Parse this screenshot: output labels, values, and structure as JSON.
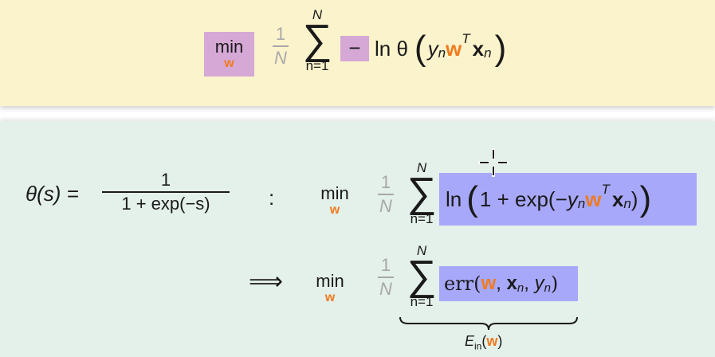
{
  "top": {
    "min": "min",
    "min_sub": "w",
    "frac_num": "1",
    "frac_den": "N",
    "sum_top": "N",
    "sum_sym": "∑",
    "sum_bottom": "n=1",
    "neg": "−",
    "ln_theta": "ln θ",
    "y": "y",
    "y_sub": "n",
    "w": "w",
    "T": "T",
    "x": "x",
    "x_sub": "n"
  },
  "bottom": {
    "theta_lhs": "θ(s) =",
    "theta_num": "1",
    "theta_den": "1 + exp(−s)",
    "colon": ":",
    "row1": {
      "min": "min",
      "min_sub": "w",
      "frac_num": "1",
      "frac_den": "N",
      "sum_top": "N",
      "sum_sym": "∑",
      "sum_bottom": "n=1",
      "ln": "ln",
      "one_plus_exp": "1 + exp(−",
      "y": "y",
      "y_sub": "n",
      "w": "w",
      "T": "T",
      "x": "x",
      "x_sub": "n",
      "close": ")"
    },
    "row2": {
      "implies": "⟹",
      "min": "min",
      "min_sub": "w",
      "frac_num": "1",
      "frac_den": "N",
      "sum_top": "N",
      "sum_sym": "∑",
      "sum_bottom": "n=1",
      "err": "err(",
      "w": "w",
      "comma1": ", ",
      "x": "x",
      "x_sub": "n",
      "comma2": ", ",
      "y": "y",
      "y_sub": "n",
      "close": ")",
      "ein_E": "E",
      "ein_sub": "in",
      "ein_open": "(",
      "ein_w": "w",
      "ein_close": ")"
    }
  }
}
